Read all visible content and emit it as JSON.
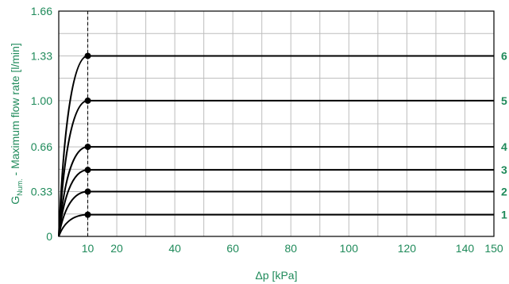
{
  "chart_data": {
    "type": "line",
    "xlabel": "Δp [kPa]",
    "ylabel_main": "G",
    "ylabel_sub": "Num.",
    "ylabel_rest": " - Maximum flow rate [l/min]",
    "xlim": [
      0,
      150
    ],
    "ylim": [
      0,
      1.66
    ],
    "x_ticks": [
      10,
      20,
      40,
      60,
      80,
      100,
      120,
      140,
      150
    ],
    "x_tick_labels": [
      "10",
      "20",
      "40",
      "60",
      "80",
      "100",
      "120",
      "140",
      "150"
    ],
    "y_ticks": [
      0,
      0.33,
      0.66,
      1.0,
      1.33,
      1.66
    ],
    "y_tick_labels": [
      "0",
      "0.33",
      "0.66",
      "1.00",
      "1.33",
      "1.66"
    ],
    "grid": true,
    "reference_line_x": 10,
    "series": [
      {
        "name": "1",
        "saturation_dp": 10,
        "max_flow": 0.16
      },
      {
        "name": "2",
        "saturation_dp": 10,
        "max_flow": 0.33
      },
      {
        "name": "3",
        "saturation_dp": 10,
        "max_flow": 0.49
      },
      {
        "name": "4",
        "saturation_dp": 10,
        "max_flow": 0.66
      },
      {
        "name": "5",
        "saturation_dp": 10,
        "max_flow": 1.0
      },
      {
        "name": "6",
        "saturation_dp": 10,
        "max_flow": 1.33
      }
    ]
  },
  "colors": {
    "label": "#1f8a5a",
    "grid": "#bdbdbd",
    "curve": "#000000"
  }
}
